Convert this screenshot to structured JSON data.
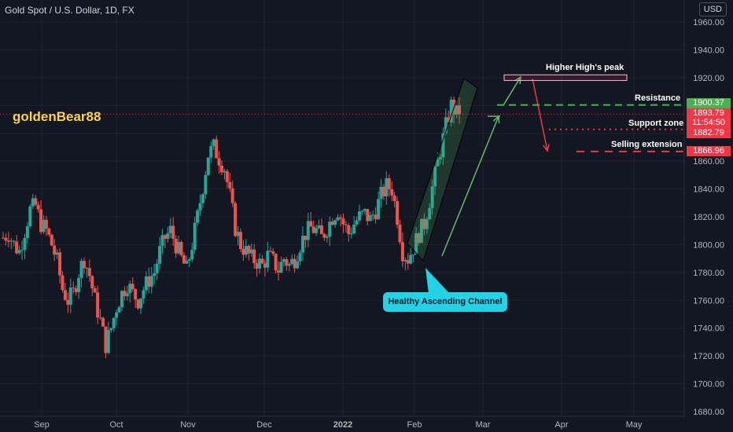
{
  "header": {
    "symbol_title": "Gold Spot / U.S. Dollar, 1D, FX",
    "currency": "USD",
    "watermark": "goldenBear88"
  },
  "colors": {
    "background": "#131722",
    "grid": "#1f2330",
    "up_candle": "#26a69a",
    "down_candle": "#ef5350",
    "resistance": "#4caf50",
    "support": "#f23645",
    "callout": "#22d3e6",
    "watermark": "#f5d64c"
  },
  "annotations": {
    "higher_high": "Higher High's peak",
    "resistance": "Resistance",
    "support_zone": "Support zone",
    "selling_extension": "Selling extension",
    "channel": "Healthy Ascending Channel"
  },
  "price_tags": {
    "resistance": "1900.37",
    "last_price": "1893.79",
    "countdown": "11:54:50",
    "support": "1882.79",
    "selling": "1866.96"
  },
  "chart_data": {
    "type": "candlestick",
    "title": "Gold Spot / U.S. Dollar, 1D, FX",
    "ylim": [
      1680,
      1960
    ],
    "y_ticks": [
      1680,
      1700,
      1720,
      1740,
      1760,
      1780,
      1800,
      1820,
      1840,
      1860,
      1880,
      1900,
      1920,
      1940,
      1960
    ],
    "y_tick_labels": [
      "1680.00",
      "1700.00",
      "1720.00",
      "1740.00",
      "1760.00",
      "1780.00",
      "1800.00",
      "1820.00",
      "1840.00",
      "1860.00",
      "1880.00",
      "1900.00",
      "1920.00",
      "1940.00",
      "1960.00"
    ],
    "x_labels": [
      "Sep",
      "Oct",
      "Nov",
      "Dec",
      "2022",
      "Feb",
      "Mar",
      "Apr",
      "May"
    ],
    "grid": true,
    "levels": [
      {
        "name": "Resistance",
        "price": 1900.37
      },
      {
        "name": "Support zone",
        "price": 1882.79
      },
      {
        "name": "Selling extension",
        "price": 1866.96
      }
    ],
    "higher_high_zone": [
      1918,
      1922
    ],
    "last_price": 1893.79,
    "trend": [
      1805,
      1808,
      1800,
      1795,
      1810,
      1825,
      1828,
      1815,
      1810,
      1800,
      1788,
      1768,
      1760,
      1765,
      1780,
      1790,
      1778,
      1760,
      1745,
      1728,
      1740,
      1755,
      1765,
      1772,
      1765,
      1760,
      1768,
      1775,
      1780,
      1795,
      1805,
      1810,
      1800,
      1790,
      1782,
      1800,
      1820,
      1842,
      1865,
      1870,
      1862,
      1855,
      1835,
      1812,
      1800,
      1795,
      1790,
      1788,
      1785,
      1792,
      1788,
      1782,
      1790,
      1785,
      1790,
      1800,
      1808,
      1812,
      1810,
      1805,
      1812,
      1820,
      1825,
      1815,
      1808,
      1815,
      1820,
      1822,
      1818,
      1825,
      1835,
      1842,
      1840,
      1820,
      1795,
      1790,
      1798,
      1808,
      1815,
      1832,
      1850,
      1868,
      1885,
      1900,
      1893.79
    ]
  }
}
